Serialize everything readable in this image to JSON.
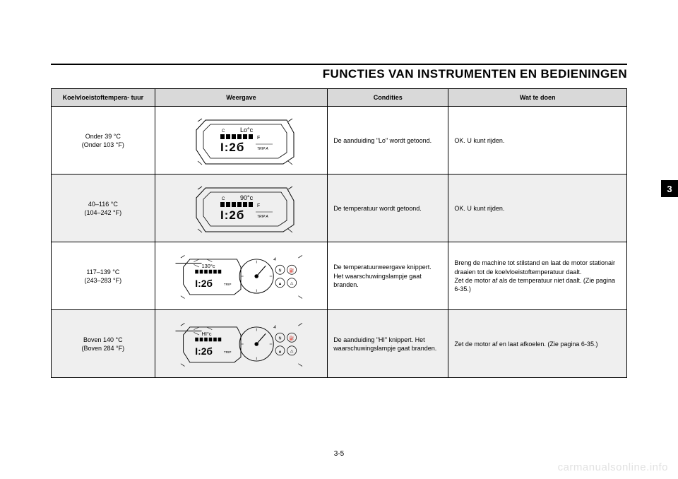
{
  "page": {
    "title": "FUNCTIES VAN INSTRUMENTEN EN BEDIENINGEN",
    "page_number": "3-5",
    "side_tab": "3",
    "watermark": "carmanualsonline.info"
  },
  "table": {
    "headers": {
      "temp": "Koelvloeistoftempera-\ntuur",
      "display": "Weergave",
      "conditions": "Condities",
      "action": "Wat te doen"
    },
    "rows": [
      {
        "temp_c": "Onder 39 °C",
        "temp_f": "(Onder 103 °F)",
        "display_label": "Lo",
        "display_type": "lcd-small",
        "conditions": "De aanduiding \"Lo\" wordt getoond.",
        "action": "OK. U kunt rijden.",
        "grey": false
      },
      {
        "temp_c": "40–116 °C",
        "temp_f": "(104–242 °F)",
        "display_label": "90",
        "display_type": "lcd-small",
        "conditions": "De temperatuur wordt getoond.",
        "action": "OK. U kunt rijden.",
        "grey": true
      },
      {
        "temp_c": "117–139 °C",
        "temp_f": "(243–283 °F)",
        "display_label": "130",
        "display_type": "panel-full",
        "conditions": "De temperatuurweergave knippert.\nHet waarschuwingslampje gaat branden.",
        "action": "Breng de machine tot stilstand en laat de motor stationair draaien tot de koelvloeistoftemperatuur daalt.\nZet de motor af als de temperatuur niet daalt. (Zie pagina 6-35.)",
        "grey": false
      },
      {
        "temp_c": "Boven 140 °C",
        "temp_f": "(Boven 284 °F)",
        "display_label": "HI",
        "display_type": "panel-full",
        "conditions": "De aanduiding \"HI\" knippert. Het waarschuwingslampje gaat branden.",
        "action": "Zet de motor af en laat afkoelen. (Zie pagina 6-35.)",
        "grey": true
      }
    ]
  },
  "style": {
    "bg_white": "#ffffff",
    "bg_grey": "#efefef",
    "header_bg": "#d9d9d9",
    "border": "#000000",
    "font_size_header": 17,
    "font_size_cell": 9,
    "font_size_th": 9
  }
}
